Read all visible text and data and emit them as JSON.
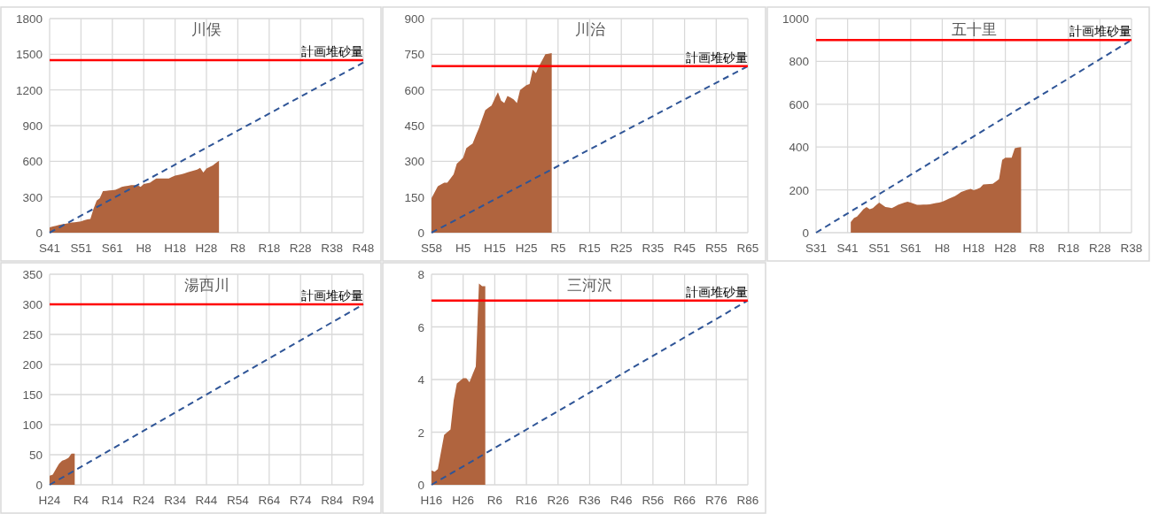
{
  "chart_data": [
    {
      "type": "area",
      "title": "川俣",
      "ylim": [
        0,
        1800
      ],
      "yticks": [
        0,
        300,
        600,
        900,
        1200,
        1500,
        1800
      ],
      "grid": true,
      "categories": [
        "S41",
        null,
        null,
        null,
        null,
        null,
        null,
        null,
        null,
        null,
        "S51",
        null,
        null,
        null,
        null,
        null,
        null,
        null,
        null,
        null,
        "S61",
        null,
        null,
        null,
        null,
        null,
        null,
        null,
        null,
        null,
        "H8",
        null,
        null,
        null,
        null,
        null,
        null,
        null,
        null,
        null,
        "H18",
        null,
        null,
        null,
        null,
        null,
        null,
        null,
        null,
        null,
        "H28",
        null,
        null,
        null,
        null,
        null,
        null,
        null,
        null,
        null,
        "R8",
        null,
        null,
        null,
        null,
        null,
        null,
        null,
        null,
        null,
        "R18",
        null,
        null,
        null,
        null,
        null,
        null,
        null,
        null,
        null,
        "R28",
        null,
        null,
        null,
        null,
        null,
        null,
        null,
        null,
        null,
        "R38",
        null,
        null,
        null,
        null,
        null,
        null,
        null,
        null,
        null,
        "R48"
      ],
      "series": [
        {
          "color": "#b0643e",
          "values": [
            45,
            52,
            58,
            65,
            70,
            75,
            80,
            85,
            88,
            92,
            95,
            105,
            112,
            115,
            200,
            270,
            290,
            350,
            352,
            355,
            357,
            360,
            372,
            385,
            390,
            395,
            400,
            400,
            400,
            385,
            410,
            415,
            420,
            438,
            455,
            455,
            455,
            455,
            455,
            468,
            480,
            485,
            490,
            498,
            507,
            515,
            522,
            530,
            545,
            505,
            540,
            552,
            565,
            585,
            605,
            null,
            null,
            null,
            null,
            null,
            null,
            null,
            null,
            null,
            null,
            null,
            null,
            null,
            null,
            null,
            null,
            null,
            null,
            null,
            null,
            null,
            null,
            null,
            null,
            null,
            null,
            null,
            null,
            null,
            null,
            null,
            null,
            null,
            null,
            null,
            null,
            null,
            null,
            null,
            null,
            null,
            null,
            null,
            null,
            null,
            null
          ]
        },
        {
          "type": "line",
          "color": "#2f5597",
          "line_style": "dashed",
          "x": [
            "S41",
            "R48"
          ],
          "values": [
            0,
            1430
          ]
        }
      ],
      "ref_lines": [
        {
          "axis": "y",
          "value": 1450,
          "label": "計画堆砂量",
          "color": "#ff0000"
        }
      ]
    },
    {
      "type": "area",
      "title": "川治",
      "ylim": [
        0,
        900
      ],
      "yticks": [
        0,
        150,
        300,
        450,
        600,
        750,
        900
      ],
      "grid": true,
      "categories": [
        "S58",
        null,
        null,
        null,
        null,
        null,
        null,
        null,
        null,
        null,
        "H5",
        null,
        null,
        null,
        null,
        null,
        null,
        null,
        null,
        null,
        "H15",
        null,
        null,
        null,
        null,
        null,
        null,
        null,
        null,
        null,
        "H25",
        null,
        null,
        null,
        null,
        null,
        null,
        null,
        null,
        null,
        "R5",
        null,
        null,
        null,
        null,
        null,
        null,
        null,
        null,
        null,
        "R15",
        null,
        null,
        null,
        null,
        null,
        null,
        null,
        null,
        null,
        "R25",
        null,
        null,
        null,
        null,
        null,
        null,
        null,
        null,
        null,
        "R35",
        null,
        null,
        null,
        null,
        null,
        null,
        null,
        null,
        null,
        "R45",
        null,
        null,
        null,
        null,
        null,
        null,
        null,
        null,
        null,
        "R55",
        null,
        null,
        null,
        null,
        null,
        null,
        null,
        null,
        null,
        "R65"
      ],
      "series": [
        {
          "color": "#b0643e",
          "values": [
            145,
            170,
            195,
            203,
            210,
            210,
            228,
            245,
            290,
            302,
            315,
            355,
            365,
            375,
            408,
            440,
            478,
            515,
            525,
            535,
            563,
            590,
            555,
            545,
            575,
            568,
            560,
            545,
            600,
            610,
            620,
            625,
            685,
            670,
            700,
            725,
            750,
            752,
            755,
            null,
            null,
            null,
            null,
            null,
            null,
            null,
            null,
            null,
            null,
            null,
            null,
            null,
            null,
            null,
            null,
            null,
            null,
            null,
            null,
            null,
            null,
            null,
            null,
            null,
            null,
            null,
            null,
            null,
            null,
            null,
            null,
            null,
            null,
            null,
            null,
            null,
            null,
            null,
            null,
            null,
            null,
            null,
            null,
            null,
            null,
            null,
            null,
            null,
            null,
            null,
            null,
            null,
            null,
            null,
            null,
            null,
            null,
            null,
            null,
            null,
            null
          ]
        },
        {
          "type": "line",
          "color": "#2f5597",
          "line_style": "dashed",
          "x": [
            "S58",
            "R65"
          ],
          "values": [
            0,
            700
          ]
        }
      ],
      "ref_lines": [
        {
          "axis": "y",
          "value": 700,
          "label": "計画堆砂量",
          "color": "#ff0000"
        }
      ]
    },
    {
      "type": "area",
      "title": "五十里",
      "ylim": [
        0,
        1000
      ],
      "yticks": [
        0,
        200,
        400,
        600,
        800,
        1000
      ],
      "grid": true,
      "categories": [
        "S31",
        null,
        null,
        null,
        null,
        null,
        null,
        null,
        null,
        null,
        "S41",
        null,
        null,
        null,
        null,
        null,
        null,
        null,
        null,
        null,
        "S51",
        null,
        null,
        null,
        null,
        null,
        null,
        null,
        null,
        null,
        "S61",
        null,
        null,
        null,
        null,
        null,
        null,
        null,
        null,
        null,
        "H8",
        null,
        null,
        null,
        null,
        null,
        null,
        null,
        null,
        null,
        "H18",
        null,
        null,
        null,
        null,
        null,
        null,
        null,
        null,
        null,
        "H28",
        null,
        null,
        null,
        null,
        null,
        null,
        null,
        null,
        null,
        "R8",
        null,
        null,
        null,
        null,
        null,
        null,
        null,
        null,
        null,
        "R18",
        null,
        null,
        null,
        null,
        null,
        null,
        null,
        null,
        null,
        "R28",
        null,
        null,
        null,
        null,
        null,
        null,
        null,
        null,
        null,
        "R38"
      ],
      "series": [
        {
          "color": "#b0643e",
          "values": [
            null,
            null,
            null,
            null,
            null,
            null,
            null,
            null,
            null,
            null,
            null,
            50,
            68,
            75,
            92,
            110,
            120,
            110,
            115,
            128,
            140,
            130,
            120,
            118,
            115,
            122,
            130,
            135,
            140,
            145,
            140,
            135,
            130,
            130,
            131,
            131,
            132,
            135,
            138,
            141,
            145,
            151,
            158,
            164,
            170,
            180,
            190,
            195,
            200,
            205,
            198,
            204,
            210,
            225,
            226,
            227,
            228,
            239,
            250,
            340,
            350,
            350,
            350,
            395,
            398,
            400,
            null,
            null,
            null,
            null,
            null,
            null,
            null,
            null,
            null,
            null,
            null,
            null,
            null,
            null,
            null,
            null,
            null,
            null,
            null,
            null,
            null,
            null,
            null,
            null,
            null,
            null,
            null,
            null,
            null,
            null,
            null,
            null,
            null,
            null,
            null
          ]
        },
        {
          "type": "line",
          "color": "#2f5597",
          "line_style": "dashed",
          "x": [
            "S31",
            "R38"
          ],
          "values": [
            0,
            900
          ]
        }
      ],
      "ref_lines": [
        {
          "axis": "y",
          "value": 900,
          "label": "計画堆砂量",
          "color": "#ff0000"
        }
      ]
    },
    {
      "type": "area",
      "title": "湯西川",
      "ylim": [
        0,
        350
      ],
      "yticks": [
        0,
        50,
        100,
        150,
        200,
        250,
        300,
        350
      ],
      "grid": true,
      "categories": [
        "H24",
        null,
        null,
        null,
        null,
        null,
        null,
        null,
        null,
        null,
        "R4",
        null,
        null,
        null,
        null,
        null,
        null,
        null,
        null,
        null,
        "R14",
        null,
        null,
        null,
        null,
        null,
        null,
        null,
        null,
        null,
        "R24",
        null,
        null,
        null,
        null,
        null,
        null,
        null,
        null,
        null,
        "R34",
        null,
        null,
        null,
        null,
        null,
        null,
        null,
        null,
        null,
        "R44",
        null,
        null,
        null,
        null,
        null,
        null,
        null,
        null,
        null,
        "R54",
        null,
        null,
        null,
        null,
        null,
        null,
        null,
        null,
        null,
        "R64",
        null,
        null,
        null,
        null,
        null,
        null,
        null,
        null,
        null,
        "R74",
        null,
        null,
        null,
        null,
        null,
        null,
        null,
        null,
        null,
        "R84",
        null,
        null,
        null,
        null,
        null,
        null,
        null,
        null,
        null,
        "R94"
      ],
      "series": [
        {
          "color": "#b0643e",
          "values": [
            15,
            17,
            26,
            35,
            40,
            42,
            45,
            52,
            52,
            null,
            null,
            null,
            null,
            null,
            null,
            null,
            null,
            null,
            null,
            null,
            null,
            null,
            null,
            null,
            null,
            null,
            null,
            null,
            null,
            null,
            null,
            null,
            null,
            null,
            null,
            null,
            null,
            null,
            null,
            null,
            null,
            null,
            null,
            null,
            null,
            null,
            null,
            null,
            null,
            null,
            null,
            null,
            null,
            null,
            null,
            null,
            null,
            null,
            null,
            null,
            null,
            null,
            null,
            null,
            null,
            null,
            null,
            null,
            null,
            null,
            null,
            null,
            null,
            null,
            null,
            null,
            null,
            null,
            null,
            null,
            null,
            null,
            null,
            null,
            null,
            null,
            null,
            null,
            null,
            null,
            null,
            null,
            null,
            null,
            null,
            null,
            null,
            null,
            null,
            null,
            null
          ]
        },
        {
          "type": "line",
          "color": "#2f5597",
          "line_style": "dashed",
          "x": [
            "H24",
            "R94"
          ],
          "values": [
            0,
            300
          ]
        }
      ],
      "ref_lines": [
        {
          "axis": "y",
          "value": 300,
          "label": "計画堆砂量",
          "color": "#ff0000"
        }
      ]
    },
    {
      "type": "area",
      "title": "三河沢",
      "ylim": [
        0,
        8
      ],
      "yticks": [
        0,
        2,
        4,
        6,
        8
      ],
      "grid": true,
      "categories": [
        "H16",
        null,
        null,
        null,
        null,
        null,
        null,
        null,
        null,
        null,
        "H26",
        null,
        null,
        null,
        null,
        null,
        null,
        null,
        null,
        null,
        "R6",
        null,
        null,
        null,
        null,
        null,
        null,
        null,
        null,
        null,
        "R16",
        null,
        null,
        null,
        null,
        null,
        null,
        null,
        null,
        null,
        "R26",
        null,
        null,
        null,
        null,
        null,
        null,
        null,
        null,
        null,
        "R36",
        null,
        null,
        null,
        null,
        null,
        null,
        null,
        null,
        null,
        "R46",
        null,
        null,
        null,
        null,
        null,
        null,
        null,
        null,
        null,
        "R56",
        null,
        null,
        null,
        null,
        null,
        null,
        null,
        null,
        null,
        "R66",
        null,
        null,
        null,
        null,
        null,
        null,
        null,
        null,
        null,
        "R76",
        null,
        null,
        null,
        null,
        null,
        null,
        null,
        null,
        null,
        "R86"
      ],
      "series": [
        {
          "color": "#b0643e",
          "values": [
            0.55,
            0.5,
            0.6,
            1.25,
            1.9,
            2.0,
            2.1,
            3.2,
            3.85,
            3.95,
            4.05,
            4.05,
            3.9,
            4.2,
            4.5,
            7.65,
            7.55,
            7.55,
            null,
            null,
            null,
            null,
            null,
            null,
            null,
            null,
            null,
            null,
            null,
            null,
            null,
            null,
            null,
            null,
            null,
            null,
            null,
            null,
            null,
            null,
            null,
            null,
            null,
            null,
            null,
            null,
            null,
            null,
            null,
            null,
            null,
            null,
            null,
            null,
            null,
            null,
            null,
            null,
            null,
            null,
            null,
            null,
            null,
            null,
            null,
            null,
            null,
            null,
            null,
            null,
            null,
            null,
            null,
            null,
            null,
            null,
            null,
            null,
            null,
            null,
            null,
            null,
            null,
            null,
            null,
            null,
            null,
            null,
            null,
            null,
            null,
            null,
            null,
            null,
            null,
            null,
            null,
            null,
            null,
            null,
            null
          ]
        },
        {
          "type": "line",
          "color": "#2f5597",
          "line_style": "dashed",
          "x": [
            "H16",
            "R86"
          ],
          "values": [
            0,
            7
          ]
        }
      ],
      "ref_lines": [
        {
          "axis": "y",
          "value": 7,
          "label": "計画堆砂量",
          "color": "#ff0000"
        }
      ]
    }
  ]
}
